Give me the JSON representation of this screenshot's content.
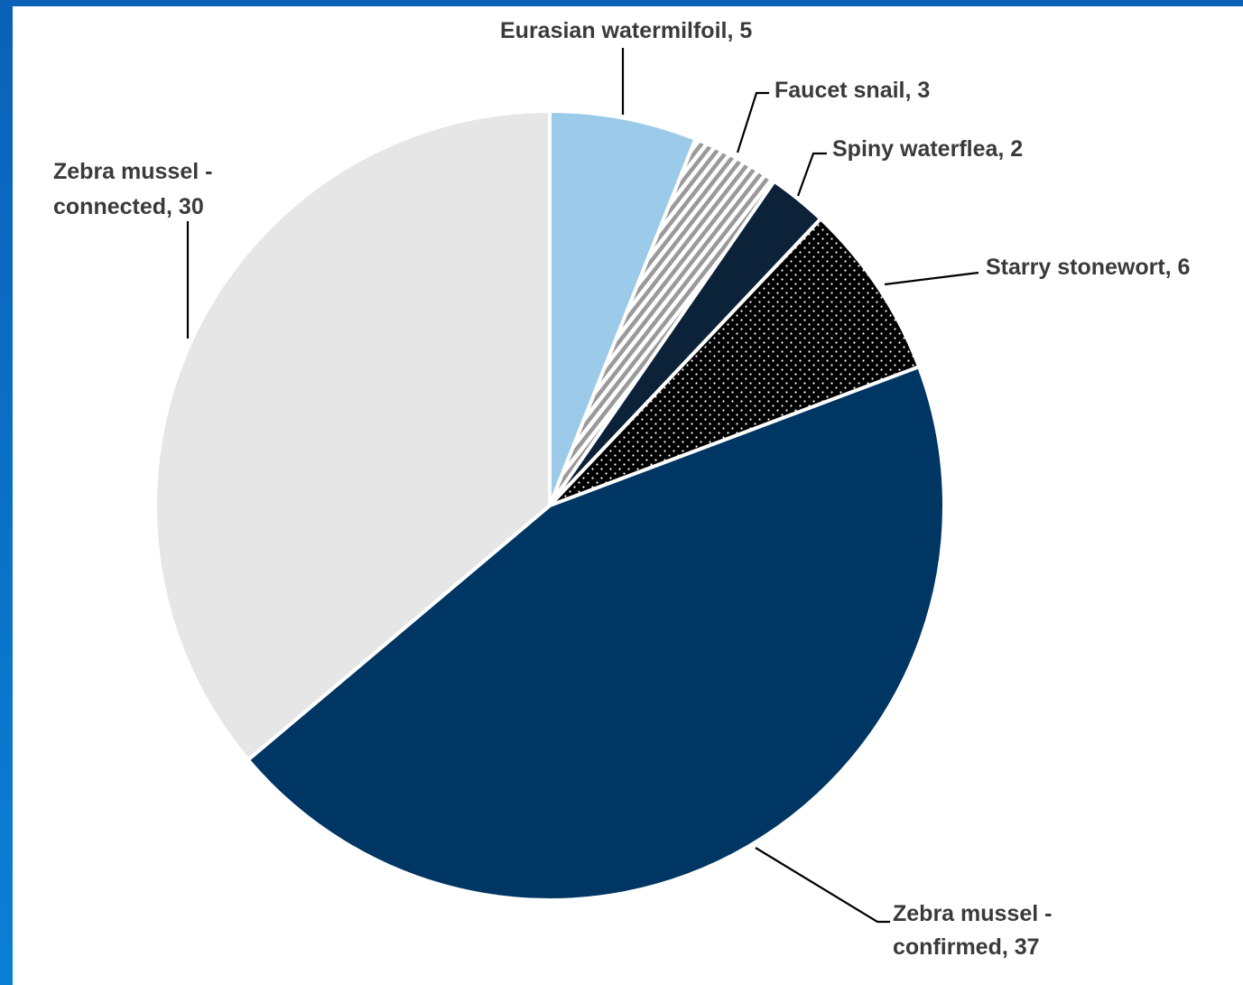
{
  "chart_data": {
    "type": "pie",
    "title": "",
    "slices": [
      {
        "label": "Eurasian watermilfoil, 5",
        "name": "Eurasian watermilfoil",
        "value": 5,
        "color": "#9ccbea",
        "pattern": "solid"
      },
      {
        "label": "Faucet snail, 3",
        "name": "Faucet snail",
        "value": 3,
        "color": "#a6a6a6",
        "pattern": "diagonal-stripes"
      },
      {
        "label": "Spiny waterflea, 2",
        "name": "Spiny waterflea",
        "value": 2,
        "color": "#0b2239",
        "pattern": "solid"
      },
      {
        "label": "Starry stonewort, 6",
        "name": "Starry stonewort",
        "value": 6,
        "color": "#000000",
        "pattern": "dots"
      },
      {
        "label": [
          "Zebra mussel -",
          "confirmed, 37"
        ],
        "name": "Zebra mussel - confirmed",
        "value": 37,
        "color": "#003663",
        "pattern": "solid"
      },
      {
        "label": [
          "Zebra mussel -",
          "connected, 30"
        ],
        "name": "Zebra mussel - connected",
        "value": 30,
        "color": "#e6e6e6",
        "pattern": "solid"
      }
    ],
    "start_angle": "12 o'clock",
    "direction": "clockwise",
    "legend": "none",
    "data_labels": "outside with leader lines"
  }
}
